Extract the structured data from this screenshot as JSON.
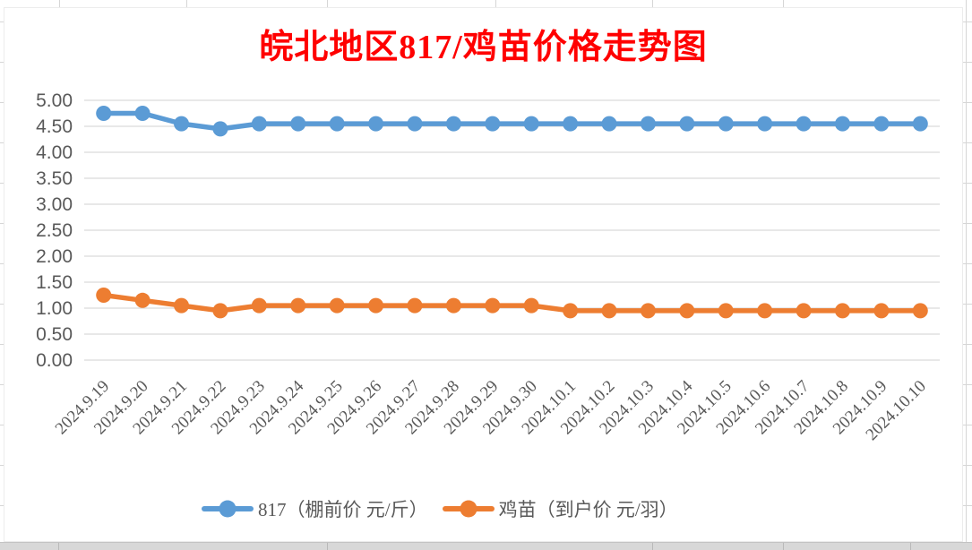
{
  "chart": {
    "title": "皖北地区817/鸡苗价格走势图",
    "title_color": "#FF0000"
  },
  "chart_data": {
    "type": "line",
    "title": "皖北地区817/鸡苗价格走势图",
    "categories": [
      "2024.9.19",
      "2024.9.20",
      "2024.9.21",
      "2024.9.22",
      "2024.9.23",
      "2024.9.24",
      "2024.9.25",
      "2024.9.26",
      "2024.9.27",
      "2024.9.28",
      "2024.9.29",
      "2024.9.30",
      "2024.10.1",
      "2024.10.2",
      "2024.10.3",
      "2024.10.4",
      "2024.10.5",
      "2024.10.6",
      "2024.10.7",
      "2024.10.8",
      "2024.10.9",
      "2024.10.10"
    ],
    "series": [
      {
        "name": "817（棚前价 元/斤）",
        "color": "#5B9BD5",
        "values": [
          4.75,
          4.75,
          4.55,
          4.45,
          4.55,
          4.55,
          4.55,
          4.55,
          4.55,
          4.55,
          4.55,
          4.55,
          4.55,
          4.55,
          4.55,
          4.55,
          4.55,
          4.55,
          4.55,
          4.55,
          4.55,
          4.55
        ]
      },
      {
        "name": "鸡苗（到户价 元/羽）",
        "color": "#ED7D31",
        "values": [
          1.25,
          1.15,
          1.05,
          0.95,
          1.05,
          1.05,
          1.05,
          1.05,
          1.05,
          1.05,
          1.05,
          1.05,
          0.95,
          0.95,
          0.95,
          0.95,
          0.95,
          0.95,
          0.95,
          0.95,
          0.95,
          0.95
        ]
      }
    ],
    "ylim": [
      0,
      5
    ],
    "ytick_step": 0.5,
    "ytick_decimals": 2,
    "grid": true,
    "grid_color": "#D9D9D9",
    "axis_text_color": "#595959",
    "legend_position": "bottom"
  }
}
